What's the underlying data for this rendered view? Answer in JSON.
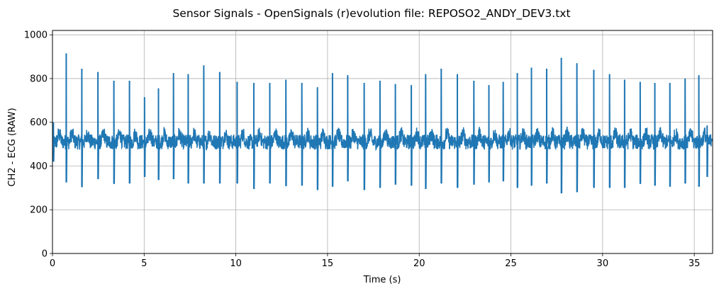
{
  "chart_data": {
    "type": "line",
    "title": "Sensor Signals - OpenSignals (r)evolution file: REPOSO2_ANDY_DEV3.txt",
    "xlabel": "Time (s)",
    "ylabel": "CH2 - ECG (RAW)",
    "xlim": [
      0,
      36
    ],
    "ylim": [
      0,
      1020
    ],
    "x_ticks": [
      0,
      5,
      10,
      15,
      20,
      25,
      30,
      35
    ],
    "y_ticks": [
      0,
      200,
      400,
      600,
      800,
      1000
    ],
    "grid": true,
    "legend": "none",
    "series_color": "#1f77b4",
    "baseline": 510,
    "noise_range": [
      440,
      590
    ],
    "series": [
      {
        "type": "r_peaks",
        "x": [
          0.05,
          0.75,
          1.6,
          2.48,
          3.35,
          4.2,
          5.02,
          5.78,
          6.6,
          7.4,
          8.25,
          9.12,
          10.07,
          10.98,
          11.85,
          12.73,
          13.6,
          14.45,
          15.27,
          16.1,
          17.0,
          17.86,
          18.7,
          19.57,
          20.35,
          21.2,
          22.08,
          22.98,
          23.8,
          24.58,
          25.35,
          26.12,
          26.95,
          27.75,
          28.6,
          29.52,
          30.38,
          31.2,
          32.05,
          32.85,
          33.67,
          34.5,
          35.25,
          35.7
        ],
        "peak": [
          600,
          915,
          845,
          830,
          790,
          790,
          715,
          755,
          825,
          820,
          860,
          830,
          785,
          780,
          780,
          795,
          780,
          760,
          825,
          815,
          780,
          790,
          775,
          770,
          820,
          845,
          820,
          790,
          770,
          785,
          825,
          850,
          845,
          895,
          870,
          840,
          820,
          795,
          785,
          780,
          780,
          800,
          815,
          585
        ],
        "trough": [
          420,
          325,
          303,
          340,
          318,
          320,
          350,
          336,
          340,
          320,
          320,
          320,
          320,
          295,
          320,
          308,
          310,
          290,
          305,
          330,
          290,
          300,
          315,
          310,
          295,
          320,
          300,
          315,
          325,
          330,
          300,
          310,
          320,
          275,
          280,
          300,
          300,
          300,
          318,
          310,
          305,
          320,
          305,
          350
        ]
      }
    ]
  }
}
